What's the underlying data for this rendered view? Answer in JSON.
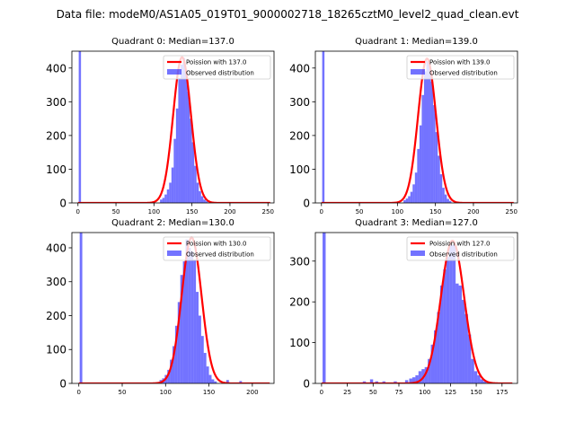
{
  "figure": {
    "suptitle": "Data file: modeM0/AS1A05_019T01_9000002718_18265cztM0_level2_quad_clean.evt"
  },
  "colors": {
    "hist": "#0000ff",
    "line": "#ff0000",
    "axis": "#000000"
  },
  "chart_data": [
    {
      "type": "bar",
      "title": "Quadrant 0: Median=137.0",
      "xlim": [
        -8,
        258
      ],
      "ylim": [
        0,
        450
      ],
      "xticks": [
        0,
        50,
        100,
        150,
        200,
        250
      ],
      "yticks": [
        0,
        100,
        200,
        300,
        400
      ],
      "legend": [
        "Poission with 137.0",
        "Observed distribution"
      ],
      "legend_position": "top-right",
      "median": 137.0,
      "peak": 432,
      "zero_bin": 450,
      "bins": [
        [
          1,
          450
        ],
        [
          108,
          10
        ],
        [
          111,
          15
        ],
        [
          114,
          25
        ],
        [
          117,
          40
        ],
        [
          120,
          60
        ],
        [
          123,
          105
        ],
        [
          126,
          190
        ],
        [
          129,
          280
        ],
        [
          132,
          370
        ],
        [
          135,
          410
        ],
        [
          138,
          430
        ],
        [
          141,
          395
        ],
        [
          144,
          330
        ],
        [
          147,
          250
        ],
        [
          150,
          180
        ],
        [
          153,
          110
        ],
        [
          156,
          60
        ],
        [
          159,
          35
        ],
        [
          162,
          20
        ],
        [
          165,
          10
        ],
        [
          168,
          5
        ]
      ]
    },
    {
      "type": "bar",
      "title": "Quadrant 1: Median=139.0",
      "xlim": [
        -8,
        258
      ],
      "ylim": [
        0,
        450
      ],
      "xticks": [
        0,
        50,
        100,
        150,
        200,
        250
      ],
      "yticks": [
        0,
        100,
        200,
        300,
        400
      ],
      "legend": [
        "Poission with 139.0",
        "Observed distribution"
      ],
      "legend_position": "top-right",
      "median": 139.0,
      "peak": 428,
      "zero_bin": 450,
      "bins": [
        [
          1,
          450
        ],
        [
          108,
          8
        ],
        [
          111,
          13
        ],
        [
          114,
          20
        ],
        [
          117,
          33
        ],
        [
          120,
          55
        ],
        [
          123,
          90
        ],
        [
          126,
          160
        ],
        [
          129,
          230
        ],
        [
          132,
          320
        ],
        [
          135,
          390
        ],
        [
          138,
          420
        ],
        [
          141,
          410
        ],
        [
          144,
          360
        ],
        [
          147,
          290
        ],
        [
          150,
          210
        ],
        [
          153,
          140
        ],
        [
          156,
          85
        ],
        [
          159,
          45
        ],
        [
          162,
          25
        ],
        [
          165,
          12
        ],
        [
          168,
          6
        ]
      ]
    },
    {
      "type": "bar",
      "title": "Quadrant 2: Median=130.0",
      "xlim": [
        -8,
        225
      ],
      "ylim": [
        0,
        445
      ],
      "xticks": [
        0,
        50,
        100,
        150,
        200
      ],
      "yticks": [
        0,
        100,
        200,
        300,
        400
      ],
      "legend": [
        "Poission with 130.0",
        "Observed distribution"
      ],
      "legend_position": "top-right",
      "median": 130.0,
      "peak": 430,
      "zero_bin": 445,
      "bins": [
        [
          1,
          445
        ],
        [
          93,
          10
        ],
        [
          96,
          15
        ],
        [
          99,
          25
        ],
        [
          102,
          40
        ],
        [
          105,
          70
        ],
        [
          108,
          110
        ],
        [
          111,
          170
        ],
        [
          114,
          240
        ],
        [
          117,
          320
        ],
        [
          120,
          360
        ],
        [
          123,
          425
        ],
        [
          126,
          400
        ],
        [
          129,
          390
        ],
        [
          132,
          365
        ],
        [
          135,
          270
        ],
        [
          138,
          200
        ],
        [
          141,
          140
        ],
        [
          144,
          90
        ],
        [
          147,
          50
        ],
        [
          150,
          25
        ],
        [
          153,
          12
        ],
        [
          156,
          6
        ],
        [
          170,
          10
        ],
        [
          185,
          7
        ]
      ]
    },
    {
      "type": "bar",
      "title": "Quadrant 3: Median=127.0",
      "xlim": [
        -6,
        190
      ],
      "ylim": [
        0,
        370
      ],
      "xticks": [
        0,
        25,
        50,
        75,
        100,
        125,
        150,
        175
      ],
      "yticks": [
        0,
        100,
        200,
        300
      ],
      "legend": [
        "Poission with 127.0",
        "Observed distribution"
      ],
      "legend_position": "top-right",
      "median": 127.0,
      "peak": 350,
      "zero_bin": 370,
      "bins": [
        [
          1,
          370
        ],
        [
          40,
          5
        ],
        [
          47,
          10
        ],
        [
          52,
          5
        ],
        [
          59,
          5
        ],
        [
          70,
          5
        ],
        [
          81,
          8
        ],
        [
          85,
          12
        ],
        [
          88,
          15
        ],
        [
          91,
          20
        ],
        [
          94,
          30
        ],
        [
          97,
          35
        ],
        [
          100,
          40
        ],
        [
          103,
          60
        ],
        [
          106,
          95
        ],
        [
          109,
          130
        ],
        [
          112,
          175
        ],
        [
          115,
          240
        ],
        [
          118,
          280
        ],
        [
          121,
          310
        ],
        [
          124,
          340
        ],
        [
          127,
          340
        ],
        [
          130,
          245
        ],
        [
          133,
          240
        ],
        [
          136,
          205
        ],
        [
          139,
          170
        ],
        [
          142,
          120
        ],
        [
          145,
          60
        ],
        [
          148,
          30
        ],
        [
          151,
          20
        ],
        [
          154,
          10
        ],
        [
          157,
          5
        ]
      ]
    }
  ]
}
